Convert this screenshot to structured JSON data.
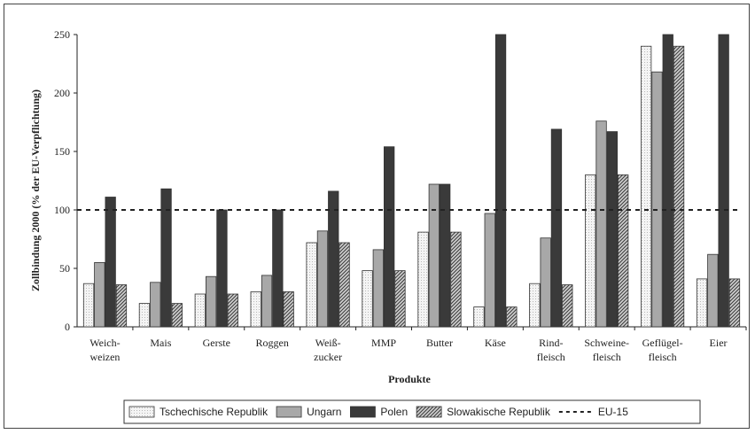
{
  "chart_data": {
    "type": "bar",
    "title": "",
    "xlabel": "Produkte",
    "ylabel": "Zollbindung 2000 (% der EU-Verpflichtung)",
    "ylim": [
      0,
      250
    ],
    "yticks": [
      0,
      50,
      100,
      150,
      200,
      250
    ],
    "categories": [
      [
        "Weich-",
        "weizen"
      ],
      [
        "Mais"
      ],
      [
        "Gerste"
      ],
      [
        "Roggen"
      ],
      [
        "Weiß-",
        "zucker"
      ],
      [
        "MMP"
      ],
      [
        "Butter"
      ],
      [
        "Käse"
      ],
      [
        "Rind-",
        "fleisch"
      ],
      [
        "Schweine-",
        "fleisch"
      ],
      [
        "Geflügel-",
        "fleisch"
      ],
      [
        "Eier"
      ]
    ],
    "series": [
      {
        "name": "Tschechische Republik",
        "color": "#efefef",
        "pattern": "light-dots",
        "values": [
          37,
          20,
          28,
          30,
          72,
          48,
          81,
          17,
          37,
          130,
          240,
          41
        ]
      },
      {
        "name": "Ungarn",
        "color": "#a8a8a8",
        "pattern": "solid",
        "values": [
          55,
          38,
          43,
          44,
          82,
          66,
          122,
          97,
          76,
          176,
          218,
          62
        ]
      },
      {
        "name": "Polen",
        "color": "#3a3a3a",
        "pattern": "solid",
        "values": [
          111,
          118,
          100,
          100,
          116,
          154,
          122,
          250,
          169,
          167,
          250,
          250
        ]
      },
      {
        "name": "Slowakische Republik",
        "color": "#8a8a8a",
        "pattern": "diagonal-hatch",
        "values": [
          36,
          20,
          28,
          30,
          72,
          48,
          81,
          17,
          36,
          130,
          240,
          41
        ]
      }
    ],
    "reference_line": {
      "name": "EU-15",
      "value": 100,
      "style": "dashed"
    },
    "grid": false,
    "legend_position": "bottom"
  }
}
